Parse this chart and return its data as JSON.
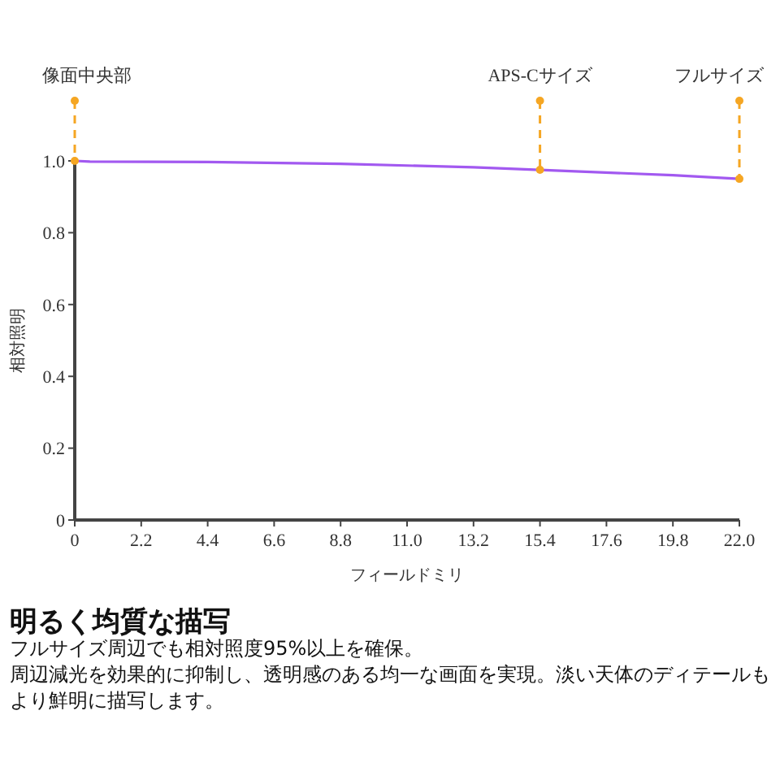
{
  "chart_data": {
    "type": "line",
    "title": "明るく均質な描写",
    "subtitle": "フルサイズ周辺でも相対照度95%以上を確保。",
    "annotations": [
      "周辺減光を効果的に抑制し、透明感のある均一な画面を実現。淡い天体のディテールもより鮮明に描写します。"
    ],
    "xlabel": "フィールドミリ",
    "ylabel": "相対照明",
    "x": [
      0,
      0.5,
      4.4,
      8.8,
      13.2,
      15.4,
      19.8,
      22
    ],
    "series": [
      {
        "color": "#a259f0",
        "values": [
          1.0,
          0.998,
          0.997,
          0.992,
          0.982,
          0.975,
          0.96,
          0.95
        ]
      }
    ],
    "xlim": [
      0,
      22
    ],
    "xticks": [
      0,
      2.2,
      4.4,
      6.6,
      8.8,
      {
        "value": 11,
        "label": "11.0"
      },
      13.2,
      15.4,
      17.6,
      19.8,
      {
        "value": 22,
        "label": "22.0"
      }
    ],
    "ylim": [
      0,
      1
    ],
    "yticks": [
      0,
      0.2,
      0.4,
      0.6,
      0.8,
      {
        "value": 1,
        "label": "1.0"
      }
    ],
    "ref_lines": [
      {
        "axis": "x",
        "value": 0,
        "label": "像面中央部",
        "color": "#f5a623",
        "line_style": "dashed"
      },
      {
        "axis": "x",
        "value": 15.4,
        "label": "APS-Cサイズ",
        "color": "#f5a623",
        "line_style": "dashed"
      },
      {
        "axis": "x",
        "value": 22,
        "label": "フルサイズ",
        "color": "#f5a623",
        "line_style": "dashed"
      }
    ],
    "grid": false,
    "marker": "none",
    "line_style": "solid"
  }
}
